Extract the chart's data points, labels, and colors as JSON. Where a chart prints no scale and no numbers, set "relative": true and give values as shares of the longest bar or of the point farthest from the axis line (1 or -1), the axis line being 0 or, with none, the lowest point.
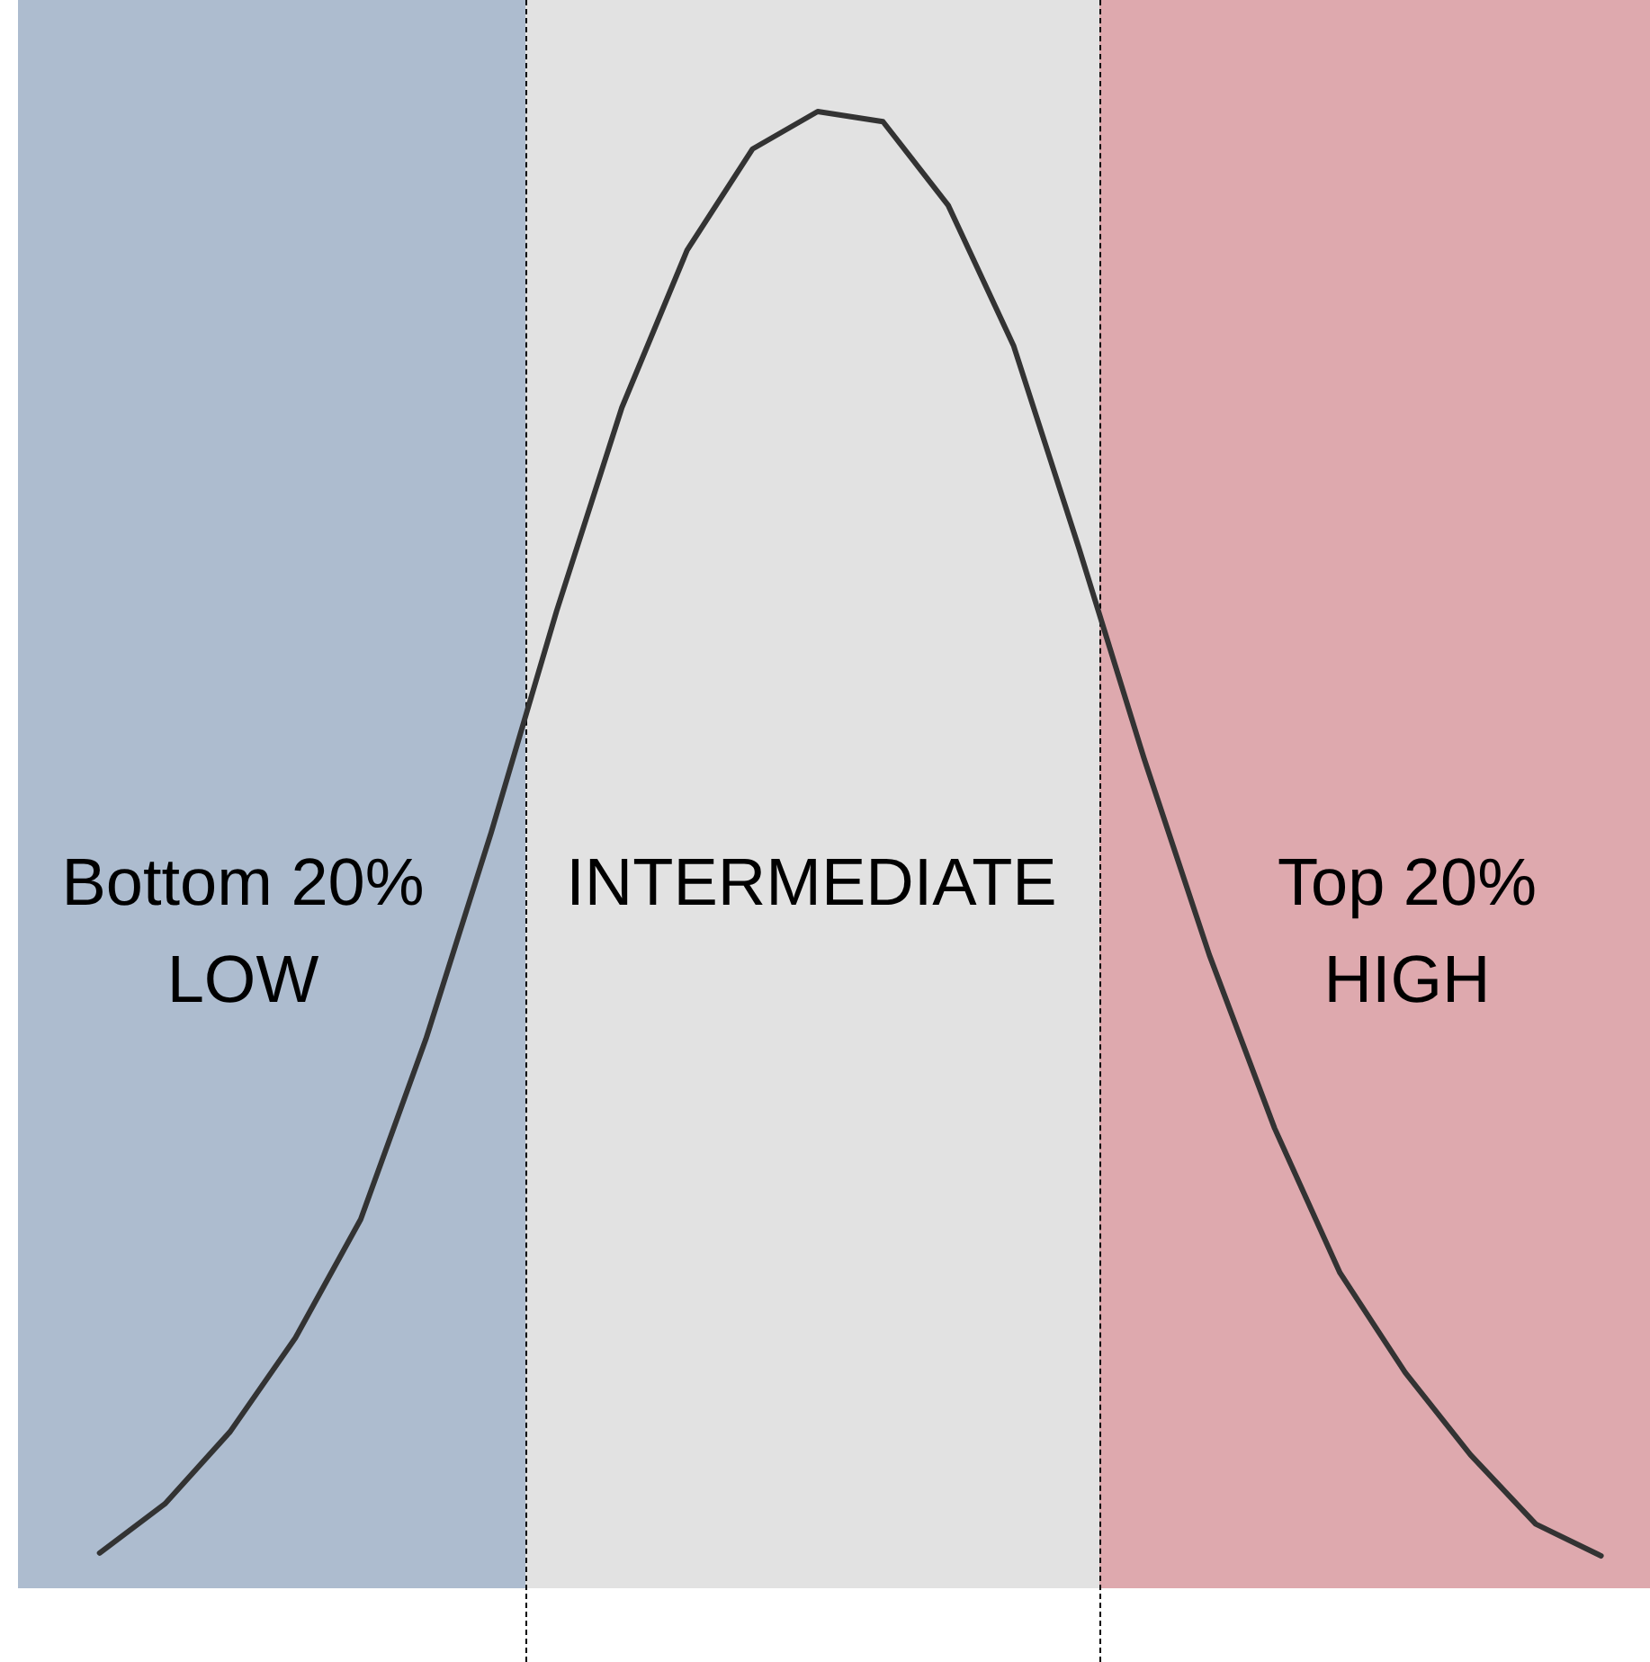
{
  "chart_data": {
    "type": "line",
    "relative": true,
    "tick_labels": false,
    "categories": [
      null,
      null,
      null,
      null,
      null,
      null,
      null,
      null,
      null,
      null,
      null,
      null,
      null,
      null,
      null,
      null,
      null,
      null,
      null,
      null,
      null,
      null,
      null,
      null
    ],
    "series": [
      {
        "color": "#333333",
        "line_style": "solid",
        "values": [
          0.002,
          0.036,
          0.086,
          0.151,
          0.233,
          0.358,
          0.501,
          0.654,
          0.795,
          0.904,
          0.974,
          1,
          0.993,
          0.935,
          0.838,
          0.698,
          0.552,
          0.416,
          0.296,
          0.196,
          0.127,
          0.07,
          0.022,
          0
        ]
      }
    ],
    "annotations": [
      "Bottom 20%\nLOW",
      "INTERMEDIATE",
      "Top 20%\nHIGH"
    ]
  }
}
